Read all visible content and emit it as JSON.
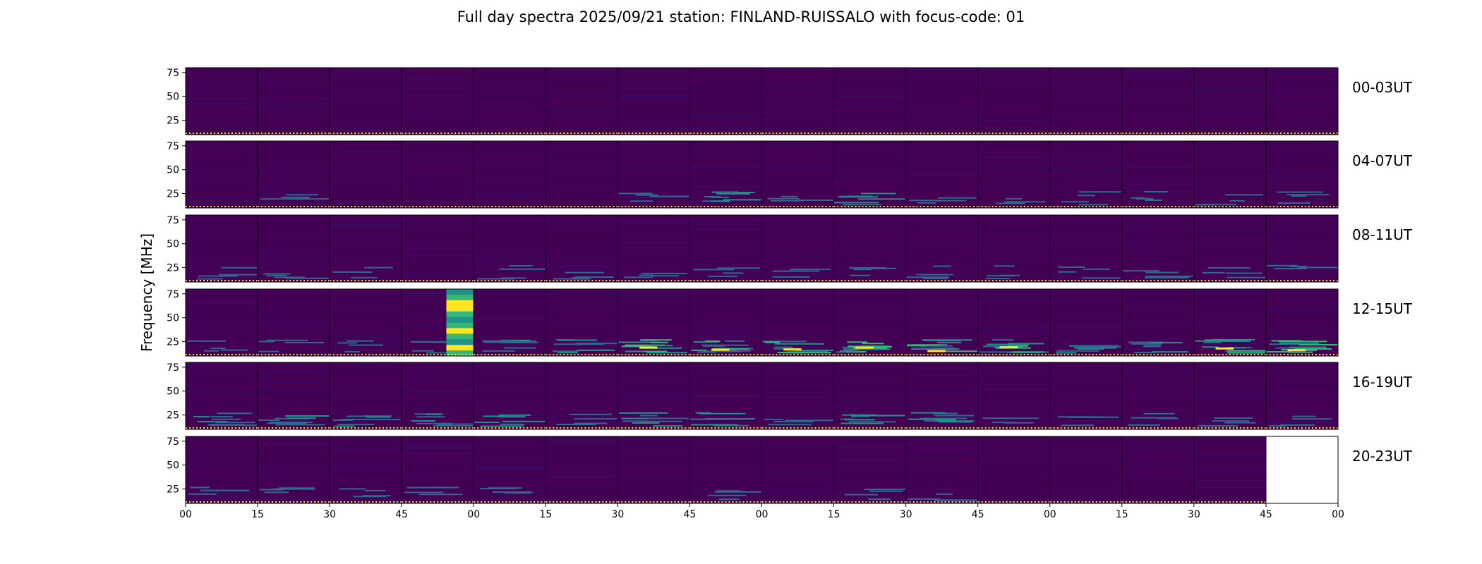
{
  "chart_data": {
    "type": "heatmap",
    "title": "Full day spectra 2025/09/21 station: FINLAND-RUISSALO with focus-code: 01",
    "ylabel": "Frequency [MHz]",
    "y_ticks": [
      "75",
      "50",
      "25"
    ],
    "ylim": [
      10,
      80
    ],
    "x_ticks": [
      "00",
      "15",
      "30",
      "45",
      "00",
      "15",
      "30",
      "45",
      "00",
      "15",
      "30",
      "45",
      "00",
      "15",
      "30",
      "45",
      "00"
    ],
    "panels_per_row": 16,
    "rows": [
      {
        "label": "00-03UT",
        "panels": 16,
        "activity": [
          0,
          0,
          0,
          0,
          0,
          0,
          0,
          0,
          0,
          0,
          0,
          0,
          0,
          0,
          0,
          0
        ],
        "burst_panel": null
      },
      {
        "label": "04-07UT",
        "panels": 16,
        "activity": [
          0,
          1,
          0,
          0,
          0,
          0,
          1,
          2,
          1,
          2,
          1,
          1,
          1,
          1,
          1,
          1
        ],
        "burst_panel": null
      },
      {
        "label": "08-11UT",
        "panels": 16,
        "activity": [
          1,
          1,
          1,
          0,
          1,
          1,
          1,
          1,
          1,
          1,
          1,
          1,
          1,
          1,
          1,
          1
        ],
        "burst_panel": null
      },
      {
        "label": "12-15UT",
        "panels": 16,
        "activity": [
          1,
          1,
          1,
          1,
          2,
          2,
          3,
          3,
          3,
          3,
          3,
          3,
          2,
          2,
          3,
          3
        ],
        "burst_panel": 3
      },
      {
        "label": "16-19UT",
        "panels": 16,
        "activity": [
          2,
          2,
          2,
          2,
          2,
          1,
          2,
          2,
          1,
          2,
          2,
          1,
          1,
          1,
          1,
          1
        ],
        "burst_panel": null
      },
      {
        "label": "20-23UT",
        "panels": 15,
        "activity": [
          1,
          1,
          1,
          1,
          1,
          0,
          0,
          1,
          0,
          1,
          1,
          0,
          0,
          0,
          0
        ],
        "burst_panel": null
      }
    ],
    "colormap": [
      "#440154",
      "#31688e",
      "#21918c",
      "#35b779",
      "#fde725"
    ]
  }
}
